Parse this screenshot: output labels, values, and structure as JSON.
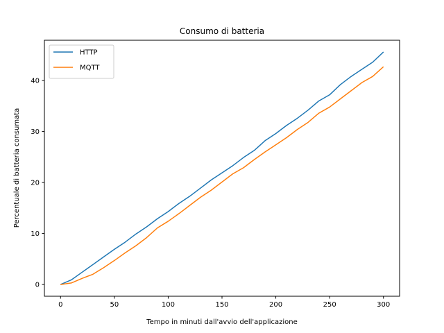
{
  "chart_data": {
    "type": "line",
    "title": "Consumo di batteria",
    "xlabel": "Tempo in minuti dall'avvio dell'applicazione",
    "ylabel": "Percentuale di batteria consumata",
    "xlim": [
      -15,
      315
    ],
    "ylim": [
      -2.3,
      47.9
    ],
    "xticks": [
      0,
      50,
      100,
      150,
      200,
      250,
      300
    ],
    "yticks": [
      0,
      10,
      20,
      30,
      40
    ],
    "grid": false,
    "legend": "top-left",
    "x": [
      0,
      10,
      20,
      30,
      40,
      50,
      60,
      70,
      80,
      90,
      100,
      110,
      120,
      130,
      140,
      150,
      160,
      170,
      180,
      190,
      200,
      210,
      220,
      230,
      240,
      250,
      260,
      270,
      280,
      290,
      300
    ],
    "series": [
      {
        "name": "HTTP",
        "color": "#1f77b4",
        "values": [
          0,
          0.9,
          2.4,
          3.9,
          5.4,
          6.9,
          8.3,
          9.9,
          11.3,
          12.9,
          14.3,
          15.9,
          17.3,
          18.9,
          20.5,
          21.9,
          23.3,
          24.9,
          26.3,
          28.2,
          29.6,
          31.2,
          32.6,
          34.2,
          36.0,
          37.2,
          39.2,
          40.8,
          42.2,
          43.6,
          45.6
        ]
      },
      {
        "name": "MQTT",
        "color": "#ff7f0e",
        "values": [
          0,
          0.3,
          1.2,
          2.0,
          3.3,
          4.7,
          6.2,
          7.6,
          9.2,
          11.1,
          12.4,
          13.9,
          15.5,
          17.1,
          18.5,
          20.1,
          21.7,
          22.9,
          24.5,
          26.0,
          27.4,
          28.8,
          30.4,
          31.8,
          33.6,
          34.8,
          36.4,
          38.0,
          39.6,
          40.8,
          42.7
        ]
      }
    ]
  }
}
